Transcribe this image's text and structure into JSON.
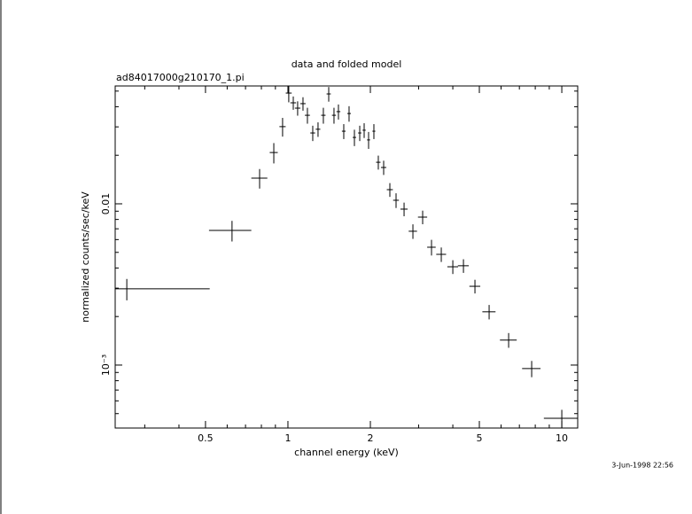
{
  "chart_data": {
    "type": "errorbar",
    "title": "data and folded model",
    "subtitle": "ad84017000g210170_1.pi",
    "xlabel": "channel energy (keV)",
    "ylabel": "normalized counts/sec/keV",
    "annotation": "3-Jun-1998 22:56",
    "color": "#000000",
    "xscale": "log",
    "yscale": "log",
    "xlim": [
      0.234,
      11.43
    ],
    "ylim": [
      0.000407,
      0.0538
    ],
    "xticks": [
      0.5,
      1,
      2,
      5,
      10
    ],
    "xminorticks": [
      0.3,
      0.4,
      0.6,
      0.7,
      0.8,
      0.9,
      3,
      4,
      6,
      7,
      8,
      9
    ],
    "yticks": [
      0.01,
      {
        "value": 0.001,
        "label": "10⁻³"
      }
    ],
    "yminorticks": [
      0.0005,
      0.0006,
      0.0007,
      0.0008,
      0.0009,
      0.002,
      0.003,
      0.004,
      0.005,
      0.006,
      0.007,
      0.008,
      0.009,
      0.02,
      0.03,
      0.04,
      0.05
    ],
    "x": [
      0.258,
      0.625,
      0.788,
      0.888,
      0.956,
      1.007,
      1.046,
      1.085,
      1.135,
      1.178,
      1.232,
      1.288,
      1.347,
      1.409,
      1.473,
      1.529,
      1.599,
      1.672,
      1.749,
      1.829,
      1.898,
      1.97,
      2.06,
      2.138,
      2.236,
      2.356,
      2.482,
      2.655,
      2.86,
      3.104,
      3.344,
      3.63,
      4.0,
      4.374,
      4.818,
      5.428,
      6.395,
      7.762,
      10.0
    ],
    "xerr": [
      0.26,
      0.11,
      0.053,
      0.03,
      0.025,
      0.025,
      0.025,
      0.025,
      0.025,
      0.025,
      0.025,
      0.025,
      0.025,
      0.025,
      0.025,
      0.025,
      0.025,
      0.025,
      0.025,
      0.025,
      0.025,
      0.025,
      0.025,
      0.04,
      0.05,
      0.06,
      0.06,
      0.08,
      0.1,
      0.12,
      0.12,
      0.15,
      0.18,
      0.2,
      0.22,
      0.3,
      0.45,
      0.6,
      1.4
    ],
    "y": [
      0.00297,
      0.00684,
      0.01443,
      0.0208,
      0.0301,
      0.0486,
      0.0423,
      0.0392,
      0.0418,
      0.0354,
      0.0275,
      0.029,
      0.0354,
      0.048,
      0.0354,
      0.0373,
      0.0282,
      0.0363,
      0.0258,
      0.0275,
      0.0286,
      0.0249,
      0.0282,
      0.0181,
      0.0168,
      0.01224,
      0.01052,
      0.00927,
      0.00676,
      0.00827,
      0.00538,
      0.00486,
      0.00407,
      0.00413,
      0.00308,
      0.00214,
      0.00143,
      0.000951,
      0.000468
    ],
    "yerr": [
      0.00045,
      0.001,
      0.002,
      0.003,
      0.004,
      0.006,
      0.004,
      0.004,
      0.004,
      0.004,
      0.003,
      0.003,
      0.004,
      0.005,
      0.004,
      0.004,
      0.003,
      0.004,
      0.003,
      0.003,
      0.003,
      0.003,
      0.003,
      0.0018,
      0.0017,
      0.0012,
      0.0011,
      0.0009,
      0.0007,
      0.0008,
      0.0006,
      0.0005,
      0.0004,
      0.0004,
      0.0003,
      0.00022,
      0.00015,
      0.00011,
      6e-05
    ]
  }
}
